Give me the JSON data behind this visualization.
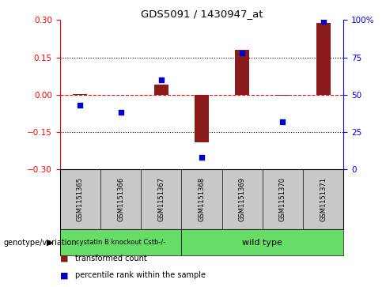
{
  "title": "GDS5091 / 1430947_at",
  "samples": [
    "GSM1151365",
    "GSM1151366",
    "GSM1151367",
    "GSM1151368",
    "GSM1151369",
    "GSM1151370",
    "GSM1151371"
  ],
  "red_values": [
    0.002,
    -0.002,
    0.04,
    -0.19,
    0.18,
    -0.005,
    0.29
  ],
  "blue_values": [
    43,
    38,
    60,
    8,
    78,
    32,
    99
  ],
  "ylim_left": [
    -0.3,
    0.3
  ],
  "ylim_right": [
    0,
    100
  ],
  "yticks_left": [
    -0.3,
    -0.15,
    0.0,
    0.15,
    0.3
  ],
  "yticks_right": [
    0,
    25,
    50,
    75,
    100
  ],
  "ytick_labels_right": [
    "0",
    "25",
    "50",
    "75",
    "100%"
  ],
  "genotype_label": "genotype/variation",
  "legend_red": "transformed count",
  "legend_blue": "percentile rank within the sample",
  "bar_color": "#8B1A1A",
  "dot_color": "#0000CD",
  "sample_box_color": "#C8C8C8",
  "geno_color_1": "#66DD66",
  "geno_color_2": "#66DD66",
  "geno1_label": "cystatin B knockout Cstb-/-",
  "geno2_label": "wild type",
  "geno1_samples": 3,
  "geno2_samples": 4
}
